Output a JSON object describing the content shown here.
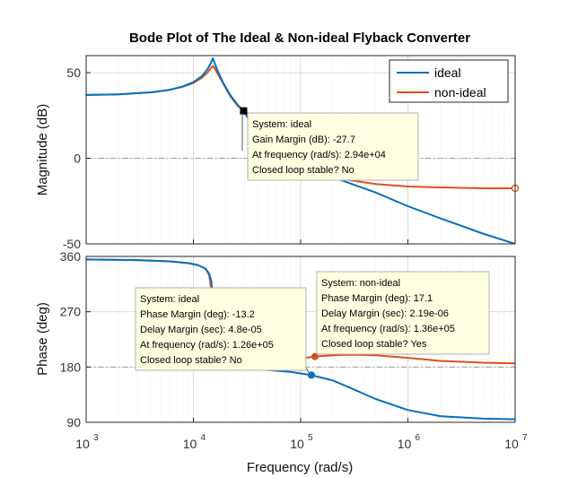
{
  "chart_data": {
    "type": "line",
    "title": "Bode Plot of The Ideal & Non-ideal Flyback Converter",
    "xlabel": "Frequency  (rad/s)",
    "xscale": "log",
    "xlim": [
      1000,
      10000000
    ],
    "x_ticks": [
      {
        "value": 1000,
        "base": "10",
        "exp": "3"
      },
      {
        "value": 10000,
        "base": "10",
        "exp": "4"
      },
      {
        "value": 100000,
        "base": "10",
        "exp": "5"
      },
      {
        "value": 1000000,
        "base": "10",
        "exp": "6"
      },
      {
        "value": 10000000,
        "base": "10",
        "exp": "7"
      }
    ],
    "grid": true,
    "legend": {
      "placement": "top-right",
      "entries": [
        "ideal",
        "non-ideal"
      ]
    },
    "colors": {
      "ideal": "#0072BD",
      "non_ideal": "#D95319",
      "ref_line": "#999999",
      "datatip_bg": "#FFFFE1"
    },
    "panels": [
      {
        "name": "magnitude",
        "ylabel": "Magnitude (dB)",
        "ylim": [
          -50,
          60
        ],
        "yticks": [
          "-50",
          "0",
          "50"
        ],
        "ytick_values": [
          -50,
          0,
          50
        ],
        "reference_line": 0,
        "series": [
          {
            "name": "ideal",
            "x": [
              1000,
              2000,
              4000,
              6000,
              8000,
              10000,
              12000,
              13500,
              14500,
              15200,
              15800,
              17000,
              19000,
              22000,
              26000,
              29400,
              35000,
              50000,
              70000,
              100000,
              150000,
              200000,
              300000,
              500000,
              1000000,
              2000000,
              5000000,
              10000000
            ],
            "y": [
              37,
              37.3,
              38.5,
              40,
              42,
              44.5,
              48,
              52,
              55.5,
              58.5,
              55.5,
              50.5,
              44,
              37,
              31,
              27.7,
              20,
              12,
              6,
              -2,
              -8,
              -11,
              -15,
              -20,
              -28,
              -35,
              -44,
              -50
            ]
          },
          {
            "name": "non-ideal",
            "x": [
              1000,
              2000,
              4000,
              6000,
              8000,
              10000,
              12000,
              13500,
              14500,
              15200,
              15800,
              17000,
              19000,
              22000,
              26000,
              29400,
              35000,
              50000,
              70000,
              100000,
              150000,
              200000,
              300000,
              500000,
              1000000,
              2000000,
              5000000,
              10000000
            ],
            "y": [
              37,
              37.3,
              38.5,
              40,
              41.8,
              44,
              47,
              50,
              52.5,
              54,
              52.5,
              49,
              43.5,
              36.5,
              30.5,
              27.5,
              20,
              11,
              4,
              -4,
              -9,
              -11,
              -13,
              -15,
              -16.5,
              -17,
              -17.5,
              -17.5
            ]
          }
        ],
        "markers": [
          {
            "series": "ideal",
            "x": 29400,
            "y": 27.7,
            "shape": "square"
          },
          {
            "series": "non-ideal",
            "x": 10000000,
            "y": -17.5,
            "shape": "circle-open"
          }
        ],
        "datatips": [
          {
            "lines": [
              "System: ideal",
              "Gain Margin (dB): -27.7",
              "At frequency (rad/s): 2.94e+04",
              "Closed loop stable? No"
            ]
          }
        ]
      },
      {
        "name": "phase",
        "ylabel": "Phase (deg)",
        "ylim": [
          90,
          360
        ],
        "yticks": [
          "90",
          "180",
          "270",
          "360"
        ],
        "ytick_values": [
          90,
          180,
          270,
          360
        ],
        "reference_line": 180,
        "series": [
          {
            "name": "ideal",
            "x": [
              1000,
              3000,
              6000,
              9000,
              11000,
              13000,
              14000,
              14700,
              15200,
              15600,
              16000,
              17000,
              20000,
              30000,
              50000,
              80000,
              126000,
              200000,
              300000,
              500000,
              1000000,
              2000000,
              5000000,
              10000000
            ],
            "y": [
              355,
              354,
              352,
              349,
              346,
              340,
              332,
              320,
              290,
              235,
              205,
              190,
              182,
              178,
              175,
              172,
              166.8,
              158,
              145,
              128,
              110,
              100,
              96,
              95
            ]
          },
          {
            "name": "non-ideal",
            "x": [
              1000,
              3000,
              6000,
              9000,
              11000,
              13000,
              14000,
              14700,
              15200,
              15600,
              16000,
              17000,
              20000,
              30000,
              50000,
              80000,
              136000,
              200000,
              300000,
              500000,
              1000000,
              2000000,
              5000000,
              10000000
            ],
            "y": [
              355,
              354,
              352,
              349,
              346,
              340,
              330,
              305,
              260,
              220,
              200,
              190,
              184,
              183,
              186,
              191,
              197.1,
              199,
              200,
              199,
              195,
              190,
              187,
              186
            ]
          }
        ],
        "markers": [
          {
            "series": "ideal",
            "x": 126000,
            "y": 166.8,
            "shape": "circle"
          },
          {
            "series": "non-ideal",
            "x": 136000,
            "y": 197.1,
            "shape": "circle"
          }
        ],
        "datatips": [
          {
            "lines": [
              "System: ideal",
              "Phase Margin (deg): -13.2",
              "Delay Margin (sec): 4.8e-05",
              "At frequency (rad/s): 1.26e+05",
              "Closed loop stable? No"
            ]
          },
          {
            "lines": [
              "System: non-ideal",
              "Phase Margin (deg): 17.1",
              "Delay Margin (sec): 2.19e-06",
              "At frequency (rad/s): 1.36e+05",
              "Closed loop stable? Yes"
            ]
          }
        ]
      }
    ]
  }
}
